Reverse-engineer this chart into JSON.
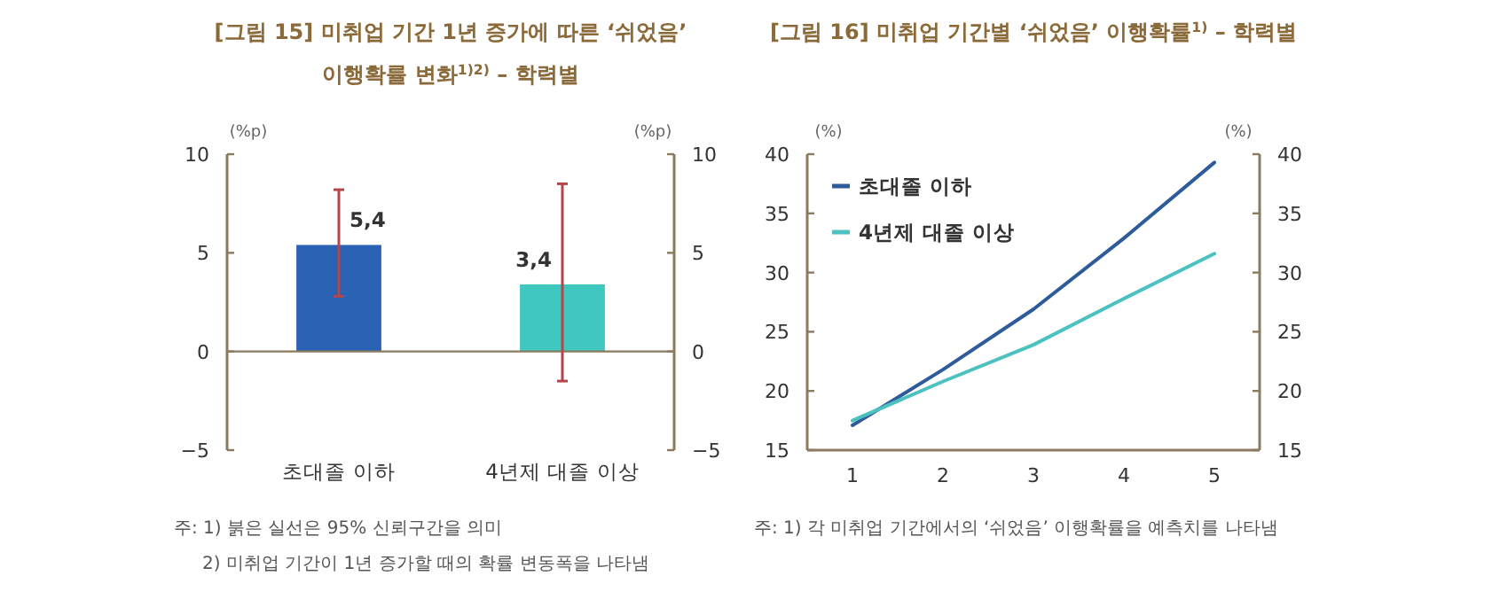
{
  "chart_data": [
    {
      "type": "bar",
      "title": "[그림 15] 미취업 기간 1년 증가에 따른 ‘쉬었음’ 이행확률 변화$^{1)2)}$ – 학력별",
      "ylabel": "(%p)",
      "y2label": "(%p)",
      "categories": [
        "초대졸 이하",
        "4년제 대졸 이상"
      ],
      "values": [
        5.4,
        3.4
      ],
      "colors": [
        "#2a62b4",
        "#3ec8c0"
      ],
      "errors": [
        [
          2.8,
          8.2
        ],
        [
          -1.5,
          8.5
        ]
      ],
      "value_labels": [
        "5,4",
        "3,4"
      ],
      "ylim": [
        -5,
        10
      ],
      "yticks": [
        -5,
        0,
        5,
        10
      ],
      "y2lim": [
        -5,
        10
      ],
      "y2ticks": [
        -5,
        0,
        5,
        10
      ],
      "ref_lines": [
        {
          "axis": "y",
          "value": 0,
          "color": "#8a7a5e"
        }
      ],
      "annotations": [
        "주: 1) 붉은 실선은 95% 신뢰구간을 의미",
        "2) 미취업 기간이 1년 증가할 때의 확률 변동폭을 나타냄"
      ]
    },
    {
      "type": "line",
      "title": "[그림 16] 미취업 기간별 ‘쉬었음’ 이행확률$^{1)}$ – 학력별",
      "ylabel": "(%)",
      "y2label": "(%)",
      "x": [
        1,
        2,
        3,
        4,
        5
      ],
      "xlim": [
        0.5,
        5.5
      ],
      "xticks": [
        1,
        2,
        3,
        4,
        5
      ],
      "ylim": [
        15,
        40
      ],
      "yticks": [
        15,
        20,
        25,
        30,
        35,
        40
      ],
      "y2lim": [
        15,
        40
      ],
      "y2ticks": [
        15,
        20,
        25,
        30,
        35,
        40
      ],
      "legend": "top left",
      "series": [
        {
          "name": "초대졸 이하",
          "color": "#2e5c9a",
          "values": [
            17.1,
            21.8,
            26.9,
            32.9,
            39.3
          ]
        },
        {
          "name": "4년제 대졸 이상",
          "color": "#4cc2c0",
          "values": [
            17.5,
            20.8,
            23.9,
            27.8,
            31.6
          ]
        }
      ],
      "annotations": [
        "주: 1) 각 미취업 기간에서의 ‘쉬었음’ 이행확률을 예측치를 나타냄"
      ]
    }
  ]
}
